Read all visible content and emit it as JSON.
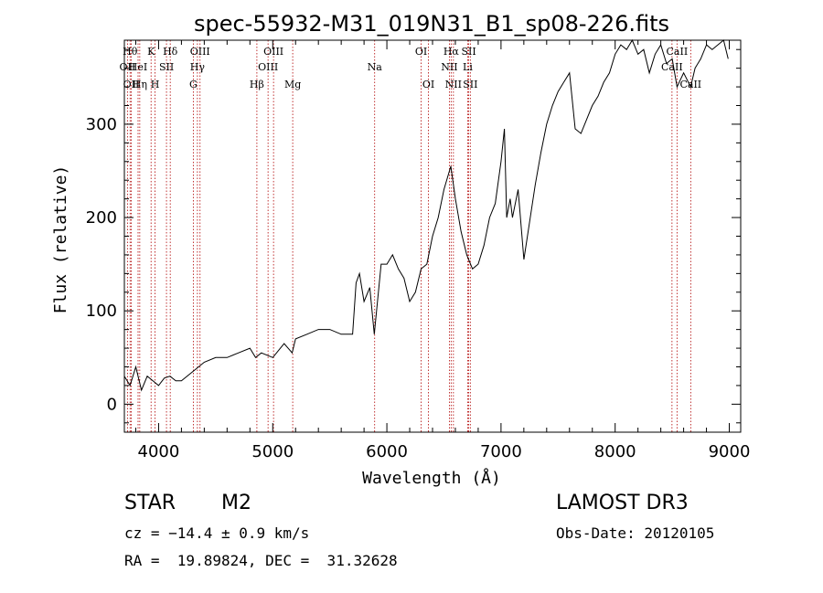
{
  "chart_data": {
    "type": "line",
    "title": "spec-55932-M31_019N31_B1_sp08-226.fits",
    "xlabel": "Wavelength (Å)",
    "ylabel": "Flux (relative)",
    "xlim": [
      3700,
      9100
    ],
    "ylim": [
      -30,
      390
    ],
    "xticks": [
      4000,
      5000,
      6000,
      7000,
      8000,
      9000
    ],
    "yticks": [
      0,
      100,
      200,
      300
    ],
    "xtick_labels": [
      "4000",
      "5000",
      "6000",
      "7000",
      "8000",
      "9000"
    ],
    "ytick_labels": [
      "0",
      "100",
      "200",
      "300"
    ],
    "series": [
      {
        "name": "flux",
        "x": [
          3700,
          3750,
          3800,
          3850,
          3900,
          3950,
          4000,
          4050,
          4100,
          4150,
          4200,
          4300,
          4400,
          4500,
          4600,
          4700,
          4800,
          4850,
          4900,
          5000,
          5100,
          5170,
          5200,
          5300,
          5400,
          5500,
          5600,
          5700,
          5730,
          5760,
          5800,
          5850,
          5890,
          5950,
          6000,
          6050,
          6100,
          6150,
          6200,
          6250,
          6300,
          6350,
          6400,
          6450,
          6500,
          6560,
          6600,
          6650,
          6700,
          6750,
          6800,
          6850,
          6900,
          6950,
          7000,
          7030,
          7050,
          7080,
          7100,
          7150,
          7200,
          7250,
          7300,
          7350,
          7400,
          7450,
          7500,
          7550,
          7600,
          7650,
          7700,
          7750,
          7800,
          7850,
          7900,
          7950,
          8000,
          8050,
          8100,
          8150,
          8200,
          8250,
          8300,
          8350,
          8400,
          8450,
          8500,
          8542,
          8600,
          8662,
          8700,
          8750,
          8800,
          8850,
          8900,
          8950,
          8990
        ],
        "y": [
          30,
          20,
          40,
          15,
          30,
          25,
          20,
          28,
          30,
          25,
          25,
          35,
          45,
          50,
          50,
          55,
          60,
          50,
          55,
          50,
          65,
          55,
          70,
          75,
          80,
          80,
          75,
          75,
          130,
          140,
          110,
          125,
          75,
          150,
          150,
          160,
          145,
          135,
          110,
          120,
          145,
          150,
          180,
          200,
          230,
          255,
          220,
          185,
          160,
          145,
          150,
          170,
          200,
          215,
          260,
          295,
          200,
          220,
          200,
          230,
          155,
          195,
          235,
          270,
          300,
          320,
          335,
          345,
          355,
          295,
          290,
          305,
          320,
          330,
          345,
          355,
          375,
          385,
          380,
          390,
          375,
          380,
          355,
          375,
          385,
          365,
          370,
          340,
          355,
          340,
          360,
          370,
          385,
          380,
          385,
          390,
          370
        ]
      }
    ],
    "lines": [
      {
        "label": "OII",
        "wave": 3727,
        "row": 2
      },
      {
        "label": "Hθ",
        "wave": 3750,
        "row": 1
      },
      {
        "label": "OII",
        "wave": 3760,
        "row": 3
      },
      {
        "label": "Hη",
        "wave": 3835,
        "row": 3
      },
      {
        "label": "HeI",
        "wave": 3820,
        "row": 2
      },
      {
        "label": "K",
        "wave": 3934,
        "row": 1
      },
      {
        "label": "SII",
        "wave": 4069,
        "row": 2
      },
      {
        "label": "H",
        "wave": 3969,
        "row": 3
      },
      {
        "label": "Hδ",
        "wave": 4102,
        "row": 1
      },
      {
        "label": "OIII",
        "wave": 4363,
        "row": 1
      },
      {
        "label": "Hγ",
        "wave": 4340,
        "row": 2
      },
      {
        "label": "G",
        "wave": 4304,
        "row": 3
      },
      {
        "label": "Hβ",
        "wave": 4861,
        "row": 3
      },
      {
        "label": "OIII",
        "wave": 4959,
        "row": 2
      },
      {
        "label": "OIII",
        "wave": 5007,
        "row": 1
      },
      {
        "label": "Mg",
        "wave": 5175,
        "row": 3
      },
      {
        "label": "Na",
        "wave": 5893,
        "row": 2
      },
      {
        "label": "OI",
        "wave": 6300,
        "row": 1
      },
      {
        "label": "OI",
        "wave": 6364,
        "row": 3
      },
      {
        "label": "NII",
        "wave": 6548,
        "row": 2
      },
      {
        "label": "Hα",
        "wave": 6563,
        "row": 1
      },
      {
        "label": "NII",
        "wave": 6583,
        "row": 3
      },
      {
        "label": "SII",
        "wave": 6717,
        "row": 1
      },
      {
        "label": "Li",
        "wave": 6708,
        "row": 2
      },
      {
        "label": "SII",
        "wave": 6731,
        "row": 3
      },
      {
        "label": "CaII",
        "wave": 8498,
        "row": 2
      },
      {
        "label": "CaII",
        "wave": 8542,
        "row": 1
      },
      {
        "label": "CaII",
        "wave": 8662,
        "row": 3
      }
    ]
  },
  "info": {
    "class_label": "STAR",
    "subclass": "M2",
    "survey": "LAMOST DR3",
    "cz": "cz = −14.4 ± 0.9 km/s",
    "obs_date": "Obs-Date: 20120105",
    "coords": "RA =  19.89824, DEC =  31.32628"
  },
  "colors": {
    "spectrum": "#000000",
    "line_markers": "#b00000",
    "axes": "#000000"
  }
}
